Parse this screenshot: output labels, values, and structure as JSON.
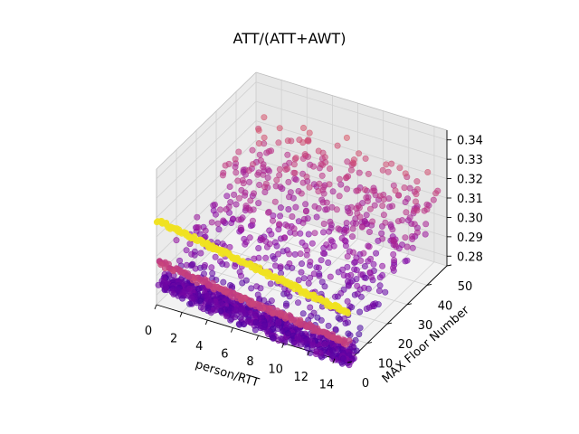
{
  "chart_data": {
    "type": "scatter",
    "projection": "3d",
    "title": "ATT/(ATT+AWT)",
    "xlabel": "person/RTT",
    "ylabel": "MAX Floor Number",
    "zlabel": "",
    "xlim": [
      0,
      15
    ],
    "ylim": [
      0,
      50
    ],
    "zlim": [
      0.275,
      0.345
    ],
    "xticks": [
      "0",
      "2",
      "4",
      "6",
      "8",
      "10",
      "12",
      "14"
    ],
    "yticks": [
      "0",
      "10",
      "20",
      "30",
      "40",
      "50"
    ],
    "zticks": [
      "0.28",
      "0.29",
      "0.30",
      "0.31",
      "0.32",
      "0.33",
      "0.34"
    ],
    "colormap": "plasma",
    "grid": true,
    "point_groups": [
      {
        "description": "dense cluster at MAX Floor Number ~ 0-5",
        "x_range": [
          0,
          15
        ],
        "y_range": [
          0,
          6
        ],
        "z_range": [
          0.275,
          0.29
        ],
        "colors": [
          "#5c01a6",
          "#7e03a8"
        ]
      },
      {
        "description": "line at MAX Floor Number = 0",
        "x_range": [
          0,
          15
        ],
        "y": 0,
        "z_start": 0.318,
        "z_end": 0.3,
        "color": "#f0f921"
      },
      {
        "description": "line at MAX Floor Number = 0",
        "x_range": [
          0,
          15
        ],
        "y": 0,
        "z_start": 0.296,
        "z_end": 0.284,
        "color": "#cc4778"
      },
      {
        "description": "spread cloud at MAX Floor Number 5-50",
        "x_range": [
          0,
          15
        ],
        "y_range": [
          5,
          50
        ],
        "z_range": [
          0.28,
          0.335
        ],
        "colors": [
          "#5c01a6",
          "#9c179e",
          "#cc4778",
          "#e16462"
        ]
      }
    ]
  }
}
